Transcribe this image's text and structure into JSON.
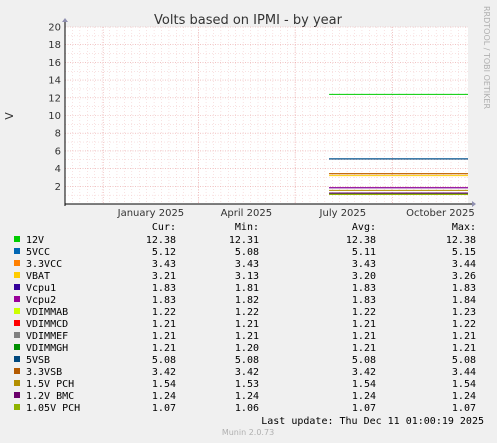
{
  "chart_data": {
    "type": "line",
    "title": "Volts based on IPMI - by year",
    "ylabel": "V",
    "xlabel": "",
    "ylim": [
      0,
      20
    ],
    "yticks": [
      2,
      4,
      6,
      8,
      10,
      12,
      14,
      16,
      18,
      20
    ],
    "x_range": [
      "2024-11-26",
      "2025-12-11"
    ],
    "xticks": [
      {
        "date": "2025-01-01",
        "label": "January 2025"
      },
      {
        "date": "2025-04-01",
        "label": "April 2025"
      },
      {
        "date": "2025-07-01",
        "label": "July 2025"
      },
      {
        "date": "2025-10-01",
        "label": "October 2025"
      }
    ],
    "data_start": "2025-08-02",
    "grid": true,
    "legend_position": "bottom",
    "watermark": "RRDTOOL / TOBI OETIKER",
    "columns": [
      "Cur:",
      "Min:",
      "Avg:",
      "Max:"
    ],
    "series": [
      {
        "name": "12V",
        "color": "#00CC00",
        "cur": "12.38",
        "min": "12.31",
        "avg": "12.38",
        "max": "12.38"
      },
      {
        "name": "5VCC",
        "color": "#0066B3",
        "cur": "5.12",
        "min": "5.08",
        "avg": "5.11",
        "max": "5.15"
      },
      {
        "name": "3.3VCC",
        "color": "#FF8000",
        "cur": "3.43",
        "min": "3.43",
        "avg": "3.43",
        "max": "3.44"
      },
      {
        "name": "VBAT",
        "color": "#FFCC00",
        "cur": "3.21",
        "min": "3.13",
        "avg": "3.20",
        "max": "3.26"
      },
      {
        "name": "Vcpu1",
        "color": "#330099",
        "cur": "1.83",
        "min": "1.81",
        "avg": "1.83",
        "max": "1.83"
      },
      {
        "name": "Vcpu2",
        "color": "#990099",
        "cur": "1.83",
        "min": "1.82",
        "avg": "1.83",
        "max": "1.84"
      },
      {
        "name": "VDIMMAB",
        "color": "#CCFF00",
        "cur": "1.22",
        "min": "1.22",
        "avg": "1.22",
        "max": "1.23"
      },
      {
        "name": "VDIMMCD",
        "color": "#FF0000",
        "cur": "1.21",
        "min": "1.21",
        "avg": "1.21",
        "max": "1.22"
      },
      {
        "name": "VDIMMEF",
        "color": "#808080",
        "cur": "1.21",
        "min": "1.21",
        "avg": "1.21",
        "max": "1.21"
      },
      {
        "name": "VDIMMGH",
        "color": "#008F00",
        "cur": "1.21",
        "min": "1.20",
        "avg": "1.21",
        "max": "1.21"
      },
      {
        "name": "5VSB",
        "color": "#00487D",
        "cur": "5.08",
        "min": "5.08",
        "avg": "5.08",
        "max": "5.08"
      },
      {
        "name": "3.3VSB",
        "color": "#B35A00",
        "cur": "3.42",
        "min": "3.42",
        "avg": "3.42",
        "max": "3.44"
      },
      {
        "name": "1.5V PCH",
        "color": "#B38F00",
        "cur": "1.54",
        "min": "1.53",
        "avg": "1.54",
        "max": "1.54"
      },
      {
        "name": "1.2V BMC",
        "color": "#6B006B",
        "cur": "1.24",
        "min": "1.24",
        "avg": "1.24",
        "max": "1.24"
      },
      {
        "name": "1.05V PCH",
        "color": "#8FB300",
        "cur": "1.07",
        "min": "1.06",
        "avg": "1.07",
        "max": "1.07"
      }
    ]
  },
  "footer": {
    "last_update": "Last update: Thu Dec 11 01:00:19 2025",
    "version": "Munin 2.0.73"
  }
}
